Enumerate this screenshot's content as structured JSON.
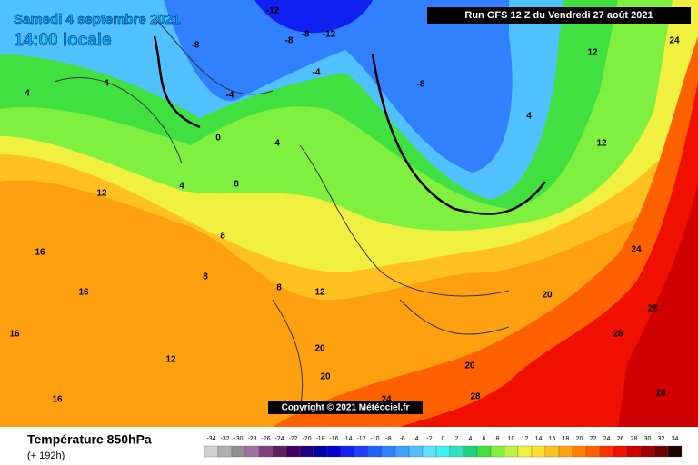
{
  "map": {
    "title_date": "Samedi 4 septembre 2021",
    "title_time": "14:00 locale",
    "run": "Run GFS 12 Z du Vendredi 27 août 2021",
    "copyright": "Copyright © 2021 Météociel.fr",
    "isotherm_labels": [
      -12,
      -8,
      -8,
      -8,
      -12,
      -8,
      -4,
      -4,
      4,
      4,
      4,
      0,
      4,
      4,
      8,
      8,
      8,
      8,
      12,
      12,
      12,
      12,
      12,
      16,
      16,
      16,
      16,
      20,
      20,
      20,
      20,
      24,
      24,
      24,
      28,
      28,
      28,
      28
    ]
  },
  "legend": {
    "title": "Température 850hPa",
    "lead": "(+ 192h)",
    "scale": [
      {
        "value": -34,
        "color": "#d0d0d0"
      },
      {
        "value": -32,
        "color": "#b0b0b0"
      },
      {
        "value": -30,
        "color": "#909090"
      },
      {
        "value": -28,
        "color": "#a070a0"
      },
      {
        "value": -26,
        "color": "#804080"
      },
      {
        "value": -24,
        "color": "#602060"
      },
      {
        "value": -22,
        "color": "#400060"
      },
      {
        "value": -20,
        "color": "#200080"
      },
      {
        "value": -18,
        "color": "#0000a0"
      },
      {
        "value": -16,
        "color": "#0000d0"
      },
      {
        "value": -14,
        "color": "#1020f0"
      },
      {
        "value": -12,
        "color": "#2040ff"
      },
      {
        "value": -10,
        "color": "#2060ff"
      },
      {
        "value": -8,
        "color": "#3080ff"
      },
      {
        "value": -6,
        "color": "#40a0ff"
      },
      {
        "value": -4,
        "color": "#50c0ff"
      },
      {
        "value": -2,
        "color": "#60e0ff"
      },
      {
        "value": 0,
        "color": "#40f0f0"
      },
      {
        "value": 2,
        "color": "#30e0c0"
      },
      {
        "value": 4,
        "color": "#20d080"
      },
      {
        "value": 6,
        "color": "#40e040"
      },
      {
        "value": 8,
        "color": "#80f040"
      },
      {
        "value": 10,
        "color": "#c0f040"
      },
      {
        "value": 12,
        "color": "#f0f040"
      },
      {
        "value": 14,
        "color": "#ffe030"
      },
      {
        "value": 16,
        "color": "#ffc020"
      },
      {
        "value": 18,
        "color": "#ffa010"
      },
      {
        "value": 20,
        "color": "#ff8000"
      },
      {
        "value": 22,
        "color": "#ff6000"
      },
      {
        "value": 24,
        "color": "#ff3000"
      },
      {
        "value": 26,
        "color": "#f01000"
      },
      {
        "value": 28,
        "color": "#d00000"
      },
      {
        "value": 30,
        "color": "#a00000"
      },
      {
        "value": 32,
        "color": "#700000"
      },
      {
        "value": 34,
        "color": "#200000"
      }
    ]
  }
}
